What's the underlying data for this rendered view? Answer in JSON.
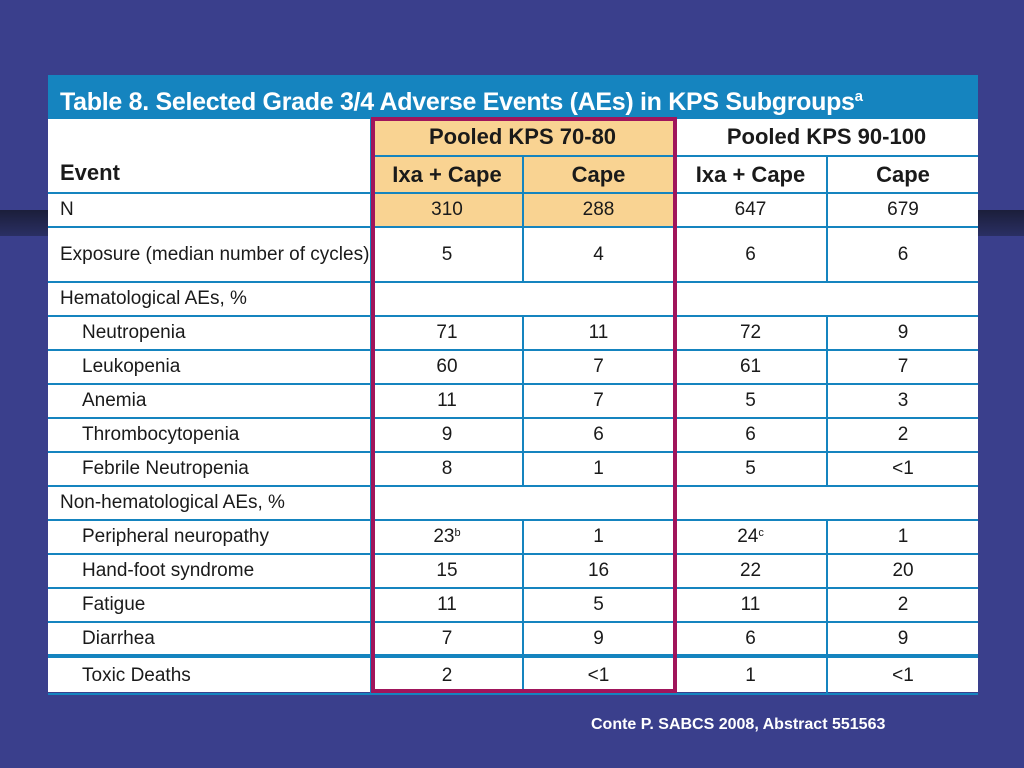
{
  "title": {
    "text": "Table 8. Selected Grade 3/4 Adverse Events (AEs) in KPS Subgroups",
    "sup": "a"
  },
  "header": {
    "event": "Event",
    "group1": "Pooled KPS 70-80",
    "group2": "Pooled KPS 90-100",
    "col_ixa_cape": "Ixa + Cape",
    "col_cape": "Cape"
  },
  "rows": [
    {
      "label": "N",
      "values": [
        "310",
        "288",
        "647",
        "679"
      ]
    },
    {
      "label": "Exposure (median number of cycles)",
      "values": [
        "5",
        "4",
        "6",
        "6"
      ]
    },
    {
      "label": "Hematological AEs, %"
    },
    {
      "label": "Neutropenia",
      "values": [
        "71",
        "11",
        "72",
        "9"
      ]
    },
    {
      "label": "Leukopenia",
      "values": [
        "60",
        "7",
        "61",
        "7"
      ]
    },
    {
      "label": "Anemia",
      "values": [
        "11",
        "7",
        "5",
        "3"
      ]
    },
    {
      "label": "Thrombocytopenia",
      "values": [
        "9",
        "6",
        "6",
        "2"
      ]
    },
    {
      "label": "Febrile Neutropenia",
      "values": [
        "8",
        "1",
        "5",
        "<1"
      ]
    },
    {
      "label": "Non-hematological AEs, %"
    },
    {
      "label": "Peripheral neuropathy",
      "values": [
        "23",
        "1",
        "24",
        "1"
      ],
      "footnotes": [
        "b",
        "",
        "c",
        ""
      ]
    },
    {
      "label": "Hand-foot syndrome",
      "values": [
        "15",
        "16",
        "22",
        "20"
      ]
    },
    {
      "label": "Fatigue",
      "values": [
        "11",
        "5",
        "11",
        "2"
      ]
    },
    {
      "label": "Diarrhea",
      "values": [
        "7",
        "9",
        "6",
        "9"
      ]
    },
    {
      "label": "Toxic Deaths",
      "values": [
        "2",
        "<1",
        "1",
        "<1"
      ]
    }
  ],
  "source": "Conte P. SABCS 2008, Abstract 551563",
  "colors": {
    "background": "#3a3f8c",
    "title_bar": "#1584bf",
    "grid": "#1584bf",
    "highlight": "#f9d392",
    "frame": "#a0155b"
  }
}
